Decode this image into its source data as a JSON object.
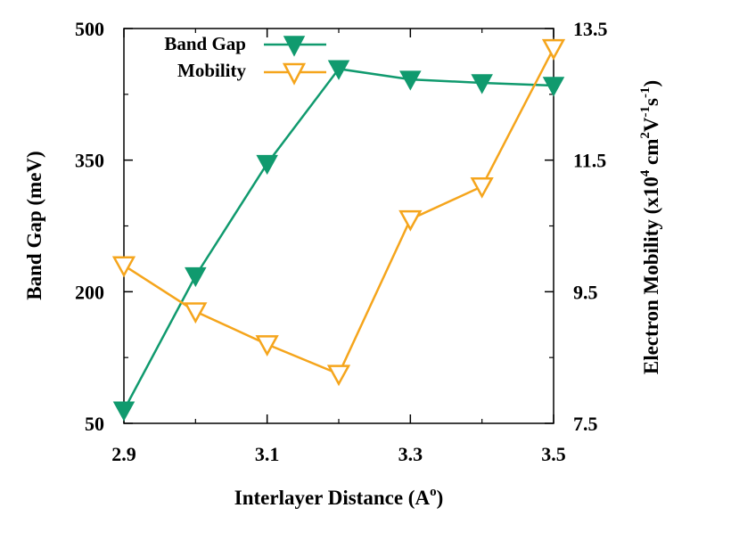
{
  "chart_data": {
    "type": "line",
    "x": [
      2.9,
      3.0,
      3.1,
      3.2,
      3.3,
      3.4,
      3.5
    ],
    "xlabel": "Interlayer Distance",
    "xlabel_unit": "(A",
    "xlabel_unit_sup": "o",
    "xlabel_close": ")",
    "xlim": [
      2.9,
      3.5
    ],
    "xticks": [
      "2.9",
      "3.1",
      "3.3",
      "3.5"
    ],
    "ylabel": "Band Gap (meV)",
    "ylim": [
      50,
      500
    ],
    "yticks": [
      "50",
      "200",
      "350",
      "500"
    ],
    "y2label_prefix": "Electron Mobility (x10",
    "y2label_exp1": "4",
    "y2label_mid": " cm",
    "y2label_exp2": "2",
    "y2label_mid2": "V",
    "y2label_exp3": "-1",
    "y2label_mid3": "s",
    "y2label_exp4": "-1",
    "y2label_suffix": ")",
    "y2lim": [
      7.5,
      13.5
    ],
    "y2ticks": [
      "7.5",
      "9.5",
      "11.5",
      "13.5"
    ],
    "legend_position": "top-left",
    "series": [
      {
        "name": "Band Gap",
        "axis": "left",
        "color": "#109a6e",
        "marker": "filled-triangle-down",
        "values": [
          65,
          218,
          346,
          454,
          442,
          438,
          435
        ]
      },
      {
        "name": "Mobility",
        "axis": "right",
        "color": "#f5a51c",
        "marker": "open-triangle-down",
        "values": [
          9.9,
          9.2,
          8.7,
          8.25,
          10.6,
          11.1,
          13.2
        ]
      }
    ]
  }
}
